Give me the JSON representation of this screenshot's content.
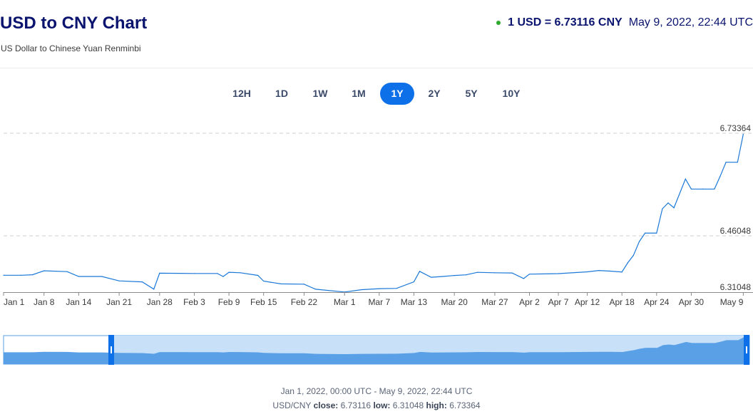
{
  "header": {
    "title": "USD to CNY Chart",
    "subtitle": "US Dollar to Chinese Yuan Renminbi",
    "rate": "1 USD = 6.73116 CNY",
    "timestamp": "May 9, 2022, 22:44 UTC",
    "live_color": "#2eaa2e"
  },
  "tabs": [
    {
      "label": "12H",
      "active": false
    },
    {
      "label": "1D",
      "active": false
    },
    {
      "label": "1W",
      "active": false
    },
    {
      "label": "1M",
      "active": false
    },
    {
      "label": "1Y",
      "active": true
    },
    {
      "label": "2Y",
      "active": false
    },
    {
      "label": "5Y",
      "active": false
    },
    {
      "label": "10Y",
      "active": false
    }
  ],
  "colors": {
    "accent": "#0e70e8",
    "line": "#1a78d8",
    "navigator_fill": "#5aa0e6",
    "navigator_selection": "#c8e0f8"
  },
  "chart_data": {
    "type": "line",
    "title": "",
    "xlabel": "",
    "ylabel": "",
    "ylim": [
      6.31048,
      6.73364
    ],
    "y_ticks": [
      "6.73364",
      "6.46048",
      "6.31048"
    ],
    "x_ticks": [
      "Jan 1",
      "Jan 8",
      "Jan 14",
      "Jan 21",
      "Jan 28",
      "Feb 3",
      "Feb 9",
      "Feb 15",
      "Feb 22",
      "Mar 1",
      "Mar 7",
      "Mar 13",
      "Mar 20",
      "Mar 27",
      "Apr 2",
      "Apr 7",
      "Apr 12",
      "Apr 18",
      "Apr 24",
      "Apr 30",
      "May 9"
    ],
    "grid": "horizontal dashed",
    "series": [
      {
        "x": [
          "Jan 1",
          "Jan 4",
          "Jan 6",
          "Jan 8",
          "Jan 12",
          "Jan 14",
          "Jan 18",
          "Jan 21",
          "Jan 25",
          "Jan 27",
          "Jan 28",
          "Feb 3",
          "Feb 7",
          "Feb 8",
          "Feb 9",
          "Feb 11",
          "Feb 14",
          "Feb 15",
          "Feb 18",
          "Feb 22",
          "Feb 24",
          "Mar 1",
          "Mar 4",
          "Mar 7",
          "Mar 10",
          "Mar 13",
          "Mar 14",
          "Mar 16",
          "Mar 18",
          "Mar 20",
          "Mar 22",
          "Mar 24",
          "Mar 27",
          "Mar 30",
          "Apr 1",
          "Apr 2",
          "Apr 7",
          "Apr 12",
          "Apr 14",
          "Apr 16",
          "Apr 18",
          "Apr 19",
          "Apr 20",
          "Apr 21",
          "Apr 22",
          "Apr 24",
          "Apr 25",
          "Apr 26",
          "Apr 27",
          "Apr 29",
          "Apr 30",
          "May 2",
          "May 4",
          "May 5",
          "May 6",
          "May 8",
          "May 9"
        ],
        "y": [
          6.3555,
          6.3555,
          6.3568,
          6.3675,
          6.3652,
          6.3522,
          6.3522,
          6.3405,
          6.3378,
          6.3185,
          6.361,
          6.3602,
          6.3602,
          6.352,
          6.3635,
          6.362,
          6.3551,
          6.3398,
          6.3325,
          6.3318,
          6.3182,
          6.3109,
          6.3172,
          6.3198,
          6.3205,
          6.338,
          6.3658,
          6.3502,
          6.3522,
          6.3548,
          6.3565,
          6.3632,
          6.3621,
          6.3615,
          6.3468,
          6.3585,
          6.3598,
          6.3645,
          6.3682,
          6.3665,
          6.3642,
          6.3885,
          6.4085,
          6.4452,
          6.4678,
          6.4678,
          6.5325,
          6.5481,
          6.5352,
          6.6118,
          6.5851,
          6.5851,
          6.5851,
          6.6192,
          6.6565,
          6.6565,
          6.7311
        ]
      }
    ]
  },
  "footer": {
    "range": "Jan 1, 2022, 00:00 UTC - May 9, 2022, 22:44 UTC",
    "pair": "USD/CNY",
    "close_label": "close:",
    "close_value": "6.73116",
    "low_label": "low:",
    "low_value": "6.31048",
    "high_label": "high:",
    "high_value": "6.73364"
  }
}
